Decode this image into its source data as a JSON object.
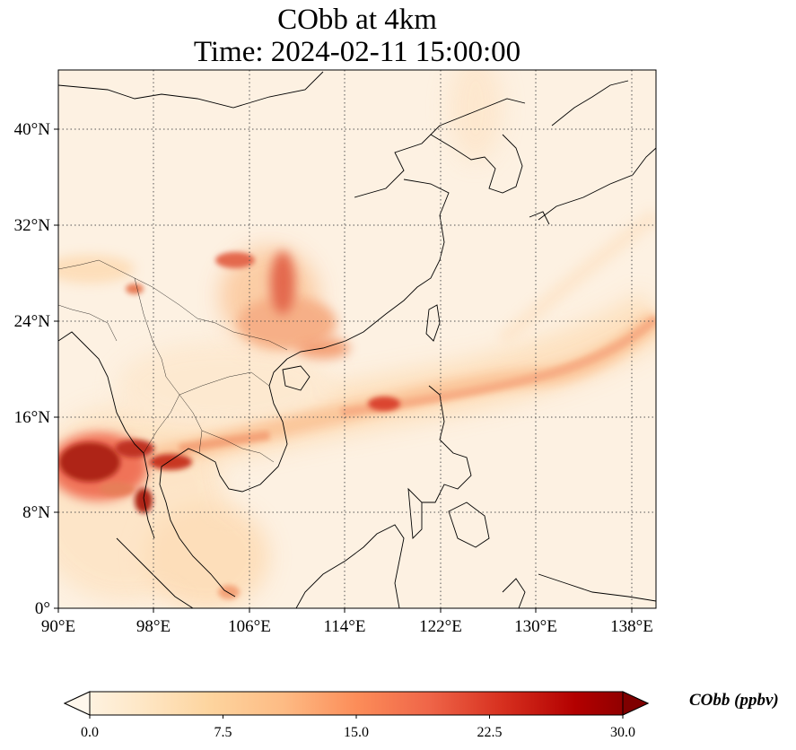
{
  "title": {
    "line1": "CObb at 4km",
    "line2": "Time: 2024-02-11 15:00:00"
  },
  "map": {
    "lon_range": [
      90,
      139
    ],
    "lat_range": [
      0,
      44
    ],
    "lon_ticks": [
      "90°E",
      "98°E",
      "106°E",
      "114°E",
      "122°E",
      "130°E",
      "138°E"
    ],
    "lat_ticks": [
      "0°",
      "8°N",
      "16°N",
      "24°N",
      "32°N",
      "40°N"
    ],
    "gridlines": "dotted"
  },
  "colorbar": {
    "title": "CObb (ppbv)",
    "ticks": [
      "0.0",
      "7.5",
      "15.0",
      "22.5",
      "30.0"
    ],
    "range": [
      0,
      30
    ],
    "extend": "both",
    "colormap": "OrRd",
    "colors": [
      "#fff7ec",
      "#fee8c8",
      "#fdd49e",
      "#fdbb84",
      "#fc8d59",
      "#ef6548",
      "#d7301f",
      "#b30000",
      "#7f0000"
    ]
  },
  "plumes": "Carbon monoxide from biomass burning concentrated over Myanmar/Thailand (10–14°N, 90–100°E) with a band extending east across Indochina, the South China Sea and past Luzon toward 24°N 138°E; secondary maximum over southern China (26–30°N, 104–110°E)."
}
